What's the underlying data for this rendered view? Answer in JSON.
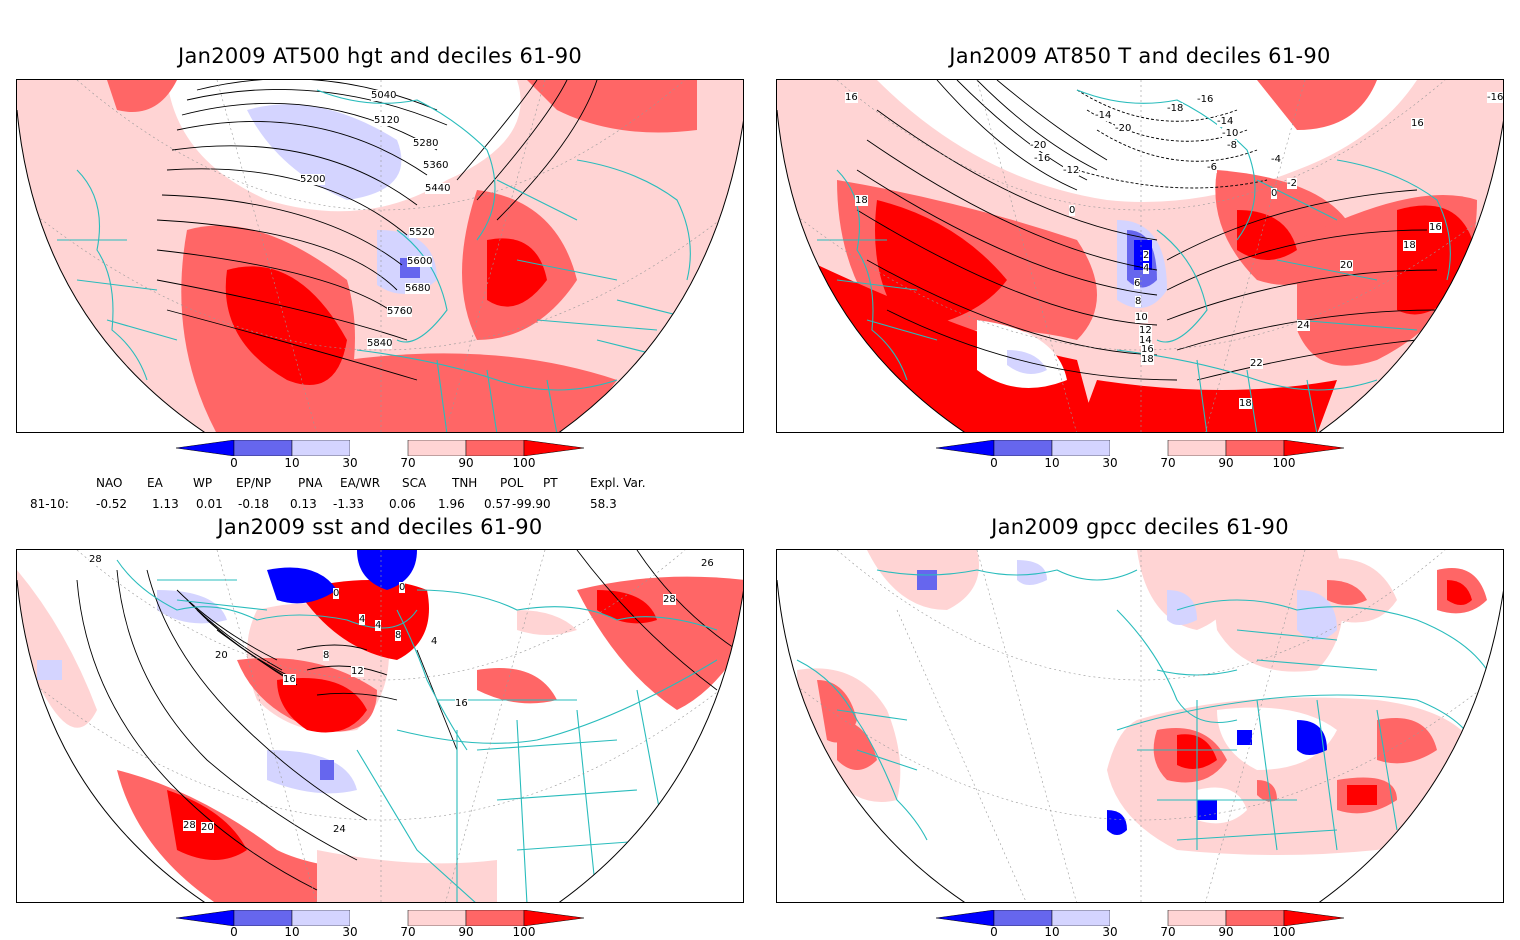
{
  "panels": [
    {
      "title": "Jan2009 AT500 hgt and deciles 61-90"
    },
    {
      "title": "Jan2009 AT850 T and deciles 61-90"
    },
    {
      "title": "Jan2009 sst and deciles 61-90"
    },
    {
      "title": "Jan2009 gpcc deciles 61-90"
    }
  ],
  "contour_labels": {
    "hgt": [
      "5040",
      "5120",
      "5200",
      "5280",
      "5360",
      "5440",
      "5520",
      "5600",
      "5680",
      "5760",
      "5840"
    ],
    "t850": [
      "16",
      "18",
      "-20",
      "-16",
      "-12",
      "0",
      "2",
      "4",
      "6",
      "8",
      "10",
      "12",
      "14",
      "16",
      "18",
      "20",
      "22",
      "24",
      "18",
      "16",
      "18",
      "-14",
      "-20",
      "-18",
      "-16",
      "-14",
      "-10",
      "-8",
      "-6",
      "-4",
      "-2",
      "0",
      "16",
      "-16"
    ],
    "sst": [
      "28",
      "20",
      "0",
      "0",
      "4",
      "4",
      "8",
      "4",
      "8",
      "12",
      "16",
      "20",
      "24",
      "28",
      "16",
      "26",
      "28"
    ]
  },
  "colorbar": {
    "labels": [
      "0",
      "10",
      "30",
      "70",
      "90",
      "100"
    ],
    "colors": [
      "#0000ff",
      "#6666ee",
      "#d4d4ff",
      "#ffffff",
      "#ffd4d4",
      "#ff6666",
      "#ff0000"
    ]
  },
  "indices": {
    "row_label": "81-10:",
    "headers": [
      "NAO",
      "EA",
      "WP",
      "EP/NP",
      "PNA",
      "EA/WR",
      "SCA",
      "TNH",
      "POL",
      "PT",
      "Expl. Var."
    ],
    "values": [
      "-0.52",
      "1.13",
      "0.01",
      "-0.18",
      "0.13",
      "-1.33",
      "0.06",
      "1.96",
      "0.57",
      "-99.90",
      "58.3"
    ]
  }
}
